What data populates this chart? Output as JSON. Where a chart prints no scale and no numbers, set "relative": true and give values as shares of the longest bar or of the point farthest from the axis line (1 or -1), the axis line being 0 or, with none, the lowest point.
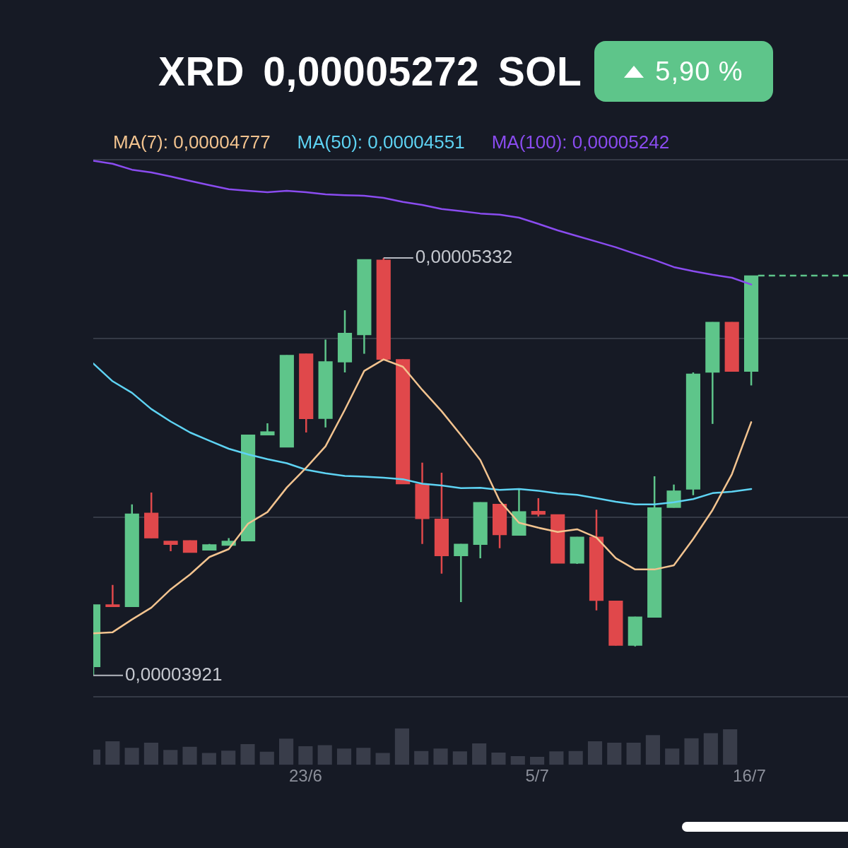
{
  "chart_data": [
    {
      "type": "candlestick",
      "title": "XRD 0,00005272 SOL",
      "annotations": [
        "5,90 %",
        "0,00005332",
        "0,00003921"
      ],
      "categories": [
        null,
        null,
        null,
        null,
        null,
        null,
        null,
        null,
        null,
        null,
        null,
        null,
        null,
        null,
        null,
        null,
        null,
        null,
        null,
        null,
        null,
        null,
        null,
        null,
        null,
        null,
        null,
        null,
        null,
        null,
        null,
        null,
        null,
        null,
        null,
        null,
        null,
        null,
        null,
        null
      ],
      "ohlc": [
        [
          3.95e-05,
          4.16e-05,
          3.921e-05,
          4.16e-05
        ],
        [
          4.16e-05,
          4.227e-05,
          4.153e-05,
          4.153e-05
        ],
        [
          4.153e-05,
          4.499e-05,
          4.153e-05,
          4.467e-05
        ],
        [
          4.47e-05,
          4.539e-05,
          4.385e-05,
          4.385e-05
        ],
        [
          4.375e-05,
          4.375e-05,
          4.341e-05,
          4.363e-05
        ],
        [
          4.377e-05,
          4.377e-05,
          4.336e-05,
          4.336e-05
        ],
        [
          4.344e-05,
          4.365e-05,
          4.344e-05,
          4.363e-05
        ],
        [
          4.36e-05,
          4.385e-05,
          4.36e-05,
          4.375e-05
        ],
        [
          4.375e-05,
          4.734e-05,
          4.375e-05,
          4.734e-05
        ],
        [
          4.733e-05,
          4.773e-05,
          4.733e-05,
          4.745e-05
        ],
        [
          4.692e-05,
          5.003e-05,
          4.692e-05,
          5.003e-05
        ],
        [
          5.008e-05,
          5.008e-05,
          4.742e-05,
          4.788e-05
        ],
        [
          4.789e-05,
          5.056e-05,
          4.759e-05,
          4.982e-05
        ],
        [
          4.98e-05,
          5.155e-05,
          4.945e-05,
          5.078e-05
        ],
        [
          5.072e-05,
          5.327e-05,
          5.008e-05,
          5.327e-05
        ],
        [
          5.325e-05,
          5.332e-05,
          4.989e-05,
          4.989e-05
        ],
        [
          4.989e-05,
          4.989e-05,
          4.568e-05,
          4.568e-05
        ],
        [
          4.568e-05,
          4.64e-05,
          4.365e-05,
          4.45e-05
        ],
        [
          4.45e-05,
          4.606e-05,
          4.265e-05,
          4.325e-05
        ],
        [
          4.325e-05,
          4.365e-05,
          4.169e-05,
          4.365e-05
        ],
        [
          4.363e-05,
          4.506e-05,
          4.317e-05,
          4.506e-05
        ],
        [
          4.5e-05,
          4.5e-05,
          4.351e-05,
          4.396e-05
        ],
        [
          4.394e-05,
          4.552e-05,
          4.394e-05,
          4.475e-05
        ],
        [
          4.476e-05,
          4.52e-05,
          4.458e-05,
          4.465e-05
        ],
        [
          4.465e-05,
          4.465e-05,
          4.3e-05,
          4.3e-05
        ],
        [
          4.3e-05,
          4.389e-05,
          4.298e-05,
          4.389e-05
        ],
        [
          4.389e-05,
          4.481e-05,
          4.141e-05,
          4.174e-05
        ],
        [
          4.173e-05,
          4.173e-05,
          4.022e-05,
          4.022e-05
        ],
        [
          4.022e-05,
          4.119e-05,
          4.019e-05,
          4.119e-05
        ],
        [
          4.117e-05,
          4.594e-05,
          4.117e-05,
          4.488e-05
        ],
        [
          4.488e-05,
          4.566e-05,
          4.488e-05,
          4.545e-05
        ],
        [
          4.55e-05,
          4.945e-05,
          4.53e-05,
          4.94e-05
        ],
        [
          4.945e-05,
          5.115e-05,
          4.771e-05,
          5.115e-05
        ],
        [
          5.115e-05,
          5.115e-05,
          4.948e-05,
          4.948e-05
        ],
        [
          4.948e-05,
          5.272e-05,
          4.901e-05,
          5.272e-05
        ],
        null,
        null,
        null,
        null,
        null
      ],
      "colors": [
        "#5ec58a",
        "#e0484b",
        "#5ec58a",
        "#e0484b",
        "#e0484b",
        "#e0484b",
        "#5ec58a",
        "#5ec58a",
        "#5ec58a",
        "#5ec58a",
        "#5ec58a",
        "#e0484b",
        "#5ec58a",
        "#5ec58a",
        "#5ec58a",
        "#e0484b",
        "#e0484b",
        "#e0484b",
        "#e0484b",
        "#5ec58a",
        "#5ec58a",
        "#e0484b",
        "#5ec58a",
        "#e0484b",
        "#e0484b",
        "#5ec58a",
        "#e0484b",
        "#e0484b",
        "#5ec58a",
        "#5ec58a",
        "#5ec58a",
        "#5ec58a",
        "#5ec58a",
        "#e0484b",
        "#5ec58a",
        "#5ec58a",
        "#5ec58a",
        "#5ec58a",
        "#5ec58a",
        "#5ec58a"
      ],
      "series": [
        {
          "name": "MA(7): 0,00004777",
          "type": "line",
          "color": "#f2c38f",
          "values": [
            4.063e-05,
            4.067e-05,
            4.11e-05,
            4.15e-05,
            4.212e-05,
            4.262e-05,
            4.321e-05,
            4.348e-05,
            4.434e-05,
            4.473e-05,
            4.556e-05,
            4.623e-05,
            4.695e-05,
            4.819e-05,
            4.95e-05,
            4.989e-05,
            4.964e-05,
            4.886e-05,
            4.814e-05,
            4.733e-05,
            4.649e-05,
            4.511e-05,
            4.437e-05,
            4.42e-05,
            4.406e-05,
            4.415e-05,
            4.387e-05,
            4.317e-05,
            4.279e-05,
            4.279e-05,
            4.293e-05,
            4.382e-05,
            4.48e-05,
            4.601e-05,
            4.777e-05,
            null,
            null,
            null,
            null,
            null
          ]
        },
        {
          "name": "MA(50): 0,00004551",
          "type": "line",
          "color": "#5ed3f3",
          "values": [
            4.975e-05,
            4.915e-05,
            4.876e-05,
            4.821e-05,
            4.779e-05,
            4.742e-05,
            4.714e-05,
            4.687e-05,
            4.668e-05,
            4.652e-05,
            4.638e-05,
            4.616e-05,
            4.604e-05,
            4.595e-05,
            4.593e-05,
            4.589e-05,
            4.584e-05,
            4.569e-05,
            4.563e-05,
            4.554e-05,
            4.555e-05,
            4.548e-05,
            4.551e-05,
            4.545e-05,
            4.536e-05,
            4.531e-05,
            4.52e-05,
            4.508e-05,
            4.499e-05,
            4.499e-05,
            4.506e-05,
            4.517e-05,
            4.537e-05,
            4.542e-05,
            4.551e-05,
            null,
            null,
            null,
            null,
            null
          ]
        },
        {
          "name": "MA(100): 0,00005242",
          "type": "line",
          "color": "#8a4cf0",
          "values": [
            5.66e-05,
            5.65e-05,
            5.63e-05,
            5.621e-05,
            5.607e-05,
            5.592e-05,
            5.578e-05,
            5.564e-05,
            5.559e-05,
            5.554e-05,
            5.559e-05,
            5.554e-05,
            5.547e-05,
            5.544e-05,
            5.542e-05,
            5.535e-05,
            5.521e-05,
            5.511e-05,
            5.497e-05,
            5.49e-05,
            5.482e-05,
            5.478e-05,
            5.468e-05,
            5.447e-05,
            5.425e-05,
            5.406e-05,
            5.387e-05,
            5.368e-05,
            5.346e-05,
            5.325e-05,
            5.301e-05,
            5.287e-05,
            5.275e-05,
            5.265e-05,
            5.242e-05,
            null,
            null,
            null,
            null,
            null
          ]
        }
      ],
      "ref_lines": [
        {
          "axis": "y",
          "value": 5.272e-05,
          "color": "#5ec58a",
          "line_style": "dashed"
        }
      ],
      "ylim": [
        3.85e-05,
        5.665e-05
      ],
      "yticks": [
        {
          "value": 3.85e-05,
          "label": null
        },
        {
          "value": 4.455e-05,
          "label": null
        },
        {
          "value": 5.06e-05,
          "label": null
        },
        {
          "value": 5.665e-05,
          "label": null
        }
      ],
      "grid": "y"
    },
    {
      "type": "bar",
      "relative": true,
      "color": "#393d4a",
      "categories": [
        null,
        null,
        null,
        null,
        null,
        null,
        null,
        null,
        null,
        null,
        null,
        "23/6",
        null,
        null,
        null,
        null,
        null,
        null,
        null,
        null,
        null,
        null,
        null,
        "5/7",
        null,
        null,
        null,
        null,
        null,
        null,
        null,
        null,
        null,
        null,
        "16/7",
        null,
        null,
        null,
        null,
        null
      ],
      "values": [
        0.41,
        0.64,
        0.46,
        0.6,
        0.4,
        0.49,
        0.32,
        0.38,
        0.56,
        0.35,
        0.71,
        0.5,
        0.53,
        0.44,
        0.46,
        0.32,
        1,
        0.37,
        0.44,
        0.36,
        0.58,
        0.33,
        0.23,
        0.21,
        0.36,
        0.37,
        0.64,
        0.6,
        0.6,
        0.81,
        0.44,
        0.72,
        0.86,
        0.97,
        null,
        null,
        null,
        null,
        null,
        null
      ]
    }
  ]
}
